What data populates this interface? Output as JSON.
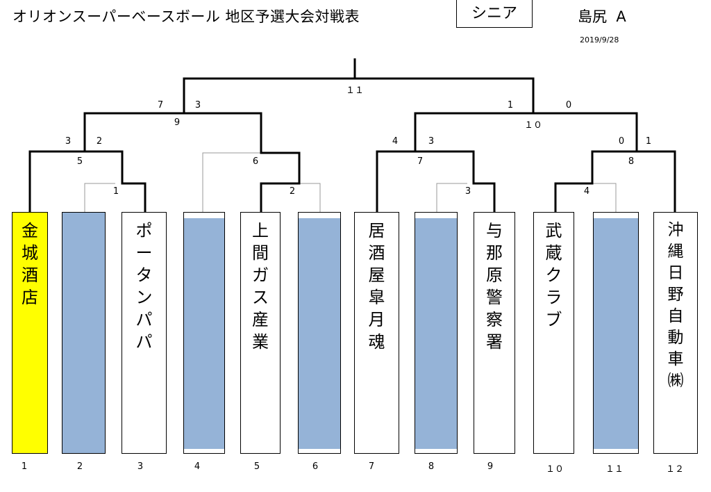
{
  "header": {
    "title": "オリオンスーパーベースボール  地区予選大会対戦表",
    "division": "シニア",
    "region": "島尻  A",
    "date": "2019/9/28"
  },
  "colors": {
    "champion": "#ffff00",
    "bye": "#95b3d7",
    "line": "#000000",
    "thin_line": "#999999"
  },
  "teams": [
    {
      "seed": "1",
      "name": "金城酒店",
      "champion": true
    },
    {
      "seed": "2",
      "name": "",
      "bye": true
    },
    {
      "seed": "3",
      "name": "ポータンパパ"
    },
    {
      "seed": "4",
      "name": "",
      "bye": true
    },
    {
      "seed": "5",
      "name": "上間ガス産業"
    },
    {
      "seed": "6",
      "name": "",
      "bye": true
    },
    {
      "seed": "7",
      "name": "居酒屋皐月魂"
    },
    {
      "seed": "8",
      "name": "",
      "bye": true
    },
    {
      "seed": "9",
      "name": "与那原警察署"
    },
    {
      "seed": "１０",
      "name": "武蔵クラブ"
    },
    {
      "seed": "１１",
      "name": "",
      "bye": true
    },
    {
      "seed": "１２",
      "name": "沖縄日野自動車㈱"
    }
  ],
  "match_numbers": {
    "m1": "1",
    "m2": "2",
    "m3": "3",
    "m4": "4",
    "m5": "5",
    "m6": "6",
    "m7": "7",
    "m8": "8",
    "m9": "9",
    "m10": "１０",
    "m11": "１１"
  },
  "scores": {
    "m5_left": "3",
    "m5_right": "2",
    "m9_left": "7",
    "m9_right": "3",
    "m7_left": "4",
    "m7_right": "3",
    "m10_left": "1",
    "m10_right": "0",
    "m8_left": "0",
    "m8_right": "1"
  }
}
